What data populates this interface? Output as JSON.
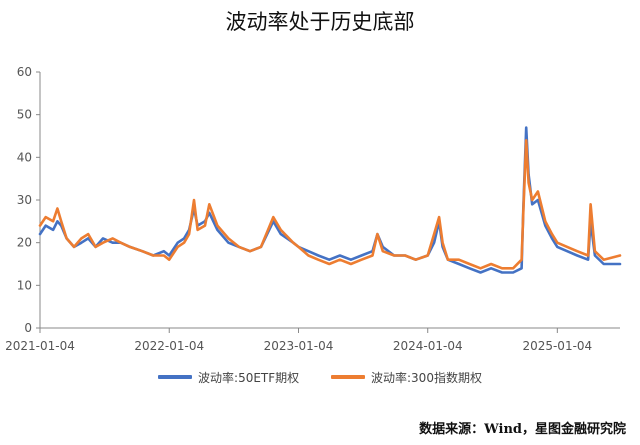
{
  "title": "波动率处于历史底部",
  "source": "数据来源：Wind，星图金融研究院",
  "colors": {
    "etf50": "#4472C4",
    "idx300": "#ED7D31",
    "axis": "#888888",
    "tick_text": "#555555"
  },
  "chart_data": {
    "type": "line",
    "title": "波动率处于历史底部",
    "xlabel": "",
    "ylabel": "",
    "ylim": [
      0,
      60
    ],
    "yticks": [
      0,
      10,
      20,
      30,
      40,
      50,
      60
    ],
    "xlim": [
      "2021-01-04",
      "2025-06-30"
    ],
    "xticks": [
      "2021-01-04",
      "2022-01-04",
      "2023-01-04",
      "2024-01-04",
      "2025-01-04"
    ],
    "grid": false,
    "legend_position": "bottom",
    "series": [
      {
        "name": "波动率:50ETF期权",
        "color": "#4472C4",
        "points": [
          [
            "2021-01-04",
            22
          ],
          [
            "2021-01-20",
            24
          ],
          [
            "2021-02-10",
            23
          ],
          [
            "2021-02-22",
            25
          ],
          [
            "2021-03-05",
            24
          ],
          [
            "2021-03-20",
            21
          ],
          [
            "2021-04-10",
            19
          ],
          [
            "2021-05-01",
            20
          ],
          [
            "2021-05-20",
            21
          ],
          [
            "2021-06-10",
            19
          ],
          [
            "2021-07-01",
            21
          ],
          [
            "2021-07-28",
            20
          ],
          [
            "2021-08-20",
            20
          ],
          [
            "2021-09-15",
            19
          ],
          [
            "2021-10-20",
            18
          ],
          [
            "2021-11-20",
            17
          ],
          [
            "2021-12-20",
            18
          ],
          [
            "2022-01-04",
            17
          ],
          [
            "2022-01-28",
            20
          ],
          [
            "2022-02-15",
            21
          ],
          [
            "2022-03-01",
            23
          ],
          [
            "2022-03-15",
            28
          ],
          [
            "2022-03-25",
            24
          ],
          [
            "2022-04-15",
            25
          ],
          [
            "2022-04-27",
            27
          ],
          [
            "2022-05-20",
            23
          ],
          [
            "2022-06-20",
            20
          ],
          [
            "2022-07-20",
            19
          ],
          [
            "2022-08-20",
            18
          ],
          [
            "2022-09-20",
            19
          ],
          [
            "2022-10-25",
            25
          ],
          [
            "2022-11-15",
            22
          ],
          [
            "2022-12-20",
            20
          ],
          [
            "2023-01-04",
            19
          ],
          [
            "2023-02-01",
            18
          ],
          [
            "2023-03-01",
            17
          ],
          [
            "2023-04-01",
            16
          ],
          [
            "2023-05-01",
            17
          ],
          [
            "2023-06-01",
            16
          ],
          [
            "2023-07-01",
            17
          ],
          [
            "2023-08-01",
            18
          ],
          [
            "2023-08-15",
            22
          ],
          [
            "2023-08-30",
            19
          ],
          [
            "2023-10-01",
            17
          ],
          [
            "2023-11-01",
            17
          ],
          [
            "2023-12-01",
            16
          ],
          [
            "2024-01-04",
            17
          ],
          [
            "2024-01-22",
            20
          ],
          [
            "2024-02-05",
            25
          ],
          [
            "2024-02-15",
            19
          ],
          [
            "2024-03-01",
            16
          ],
          [
            "2024-04-01",
            15
          ],
          [
            "2024-05-01",
            14
          ],
          [
            "2024-06-01",
            13
          ],
          [
            "2024-07-01",
            14
          ],
          [
            "2024-08-01",
            13
          ],
          [
            "2024-09-01",
            13
          ],
          [
            "2024-09-25",
            14
          ],
          [
            "2024-09-30",
            28
          ],
          [
            "2024-10-08",
            47
          ],
          [
            "2024-10-15",
            36
          ],
          [
            "2024-10-25",
            29
          ],
          [
            "2024-11-10",
            30
          ],
          [
            "2024-12-01",
            24
          ],
          [
            "2024-12-20",
            21
          ],
          [
            "2025-01-04",
            19
          ],
          [
            "2025-02-01",
            18
          ],
          [
            "2025-03-01",
            17
          ],
          [
            "2025-04-01",
            16
          ],
          [
            "2025-04-08",
            25
          ],
          [
            "2025-04-20",
            17
          ],
          [
            "2025-05-15",
            15
          ],
          [
            "2025-06-30",
            15
          ]
        ]
      },
      {
        "name": "波动率:300指数期权",
        "color": "#ED7D31",
        "points": [
          [
            "2021-01-04",
            24
          ],
          [
            "2021-01-20",
            26
          ],
          [
            "2021-02-10",
            25
          ],
          [
            "2021-02-22",
            28
          ],
          [
            "2021-03-05",
            25
          ],
          [
            "2021-03-20",
            21
          ],
          [
            "2021-04-10",
            19
          ],
          [
            "2021-05-01",
            21
          ],
          [
            "2021-05-20",
            22
          ],
          [
            "2021-06-10",
            19
          ],
          [
            "2021-07-01",
            20
          ],
          [
            "2021-07-28",
            21
          ],
          [
            "2021-08-20",
            20
          ],
          [
            "2021-09-15",
            19
          ],
          [
            "2021-10-20",
            18
          ],
          [
            "2021-11-20",
            17
          ],
          [
            "2021-12-20",
            17
          ],
          [
            "2022-01-04",
            16
          ],
          [
            "2022-01-28",
            19
          ],
          [
            "2022-02-15",
            20
          ],
          [
            "2022-03-01",
            22
          ],
          [
            "2022-03-15",
            30
          ],
          [
            "2022-03-25",
            23
          ],
          [
            "2022-04-15",
            24
          ],
          [
            "2022-04-27",
            29
          ],
          [
            "2022-05-20",
            24
          ],
          [
            "2022-06-20",
            21
          ],
          [
            "2022-07-20",
            19
          ],
          [
            "2022-08-20",
            18
          ],
          [
            "2022-09-20",
            19
          ],
          [
            "2022-10-25",
            26
          ],
          [
            "2022-11-15",
            23
          ],
          [
            "2022-12-20",
            20
          ],
          [
            "2023-01-04",
            19
          ],
          [
            "2023-02-01",
            17
          ],
          [
            "2023-03-01",
            16
          ],
          [
            "2023-04-01",
            15
          ],
          [
            "2023-05-01",
            16
          ],
          [
            "2023-06-01",
            15
          ],
          [
            "2023-07-01",
            16
          ],
          [
            "2023-08-01",
            17
          ],
          [
            "2023-08-15",
            22
          ],
          [
            "2023-08-30",
            18
          ],
          [
            "2023-10-01",
            17
          ],
          [
            "2023-11-01",
            17
          ],
          [
            "2023-12-01",
            16
          ],
          [
            "2024-01-04",
            17
          ],
          [
            "2024-01-22",
            22
          ],
          [
            "2024-02-05",
            26
          ],
          [
            "2024-02-15",
            20
          ],
          [
            "2024-03-01",
            16
          ],
          [
            "2024-04-01",
            16
          ],
          [
            "2024-05-01",
            15
          ],
          [
            "2024-06-01",
            14
          ],
          [
            "2024-07-01",
            15
          ],
          [
            "2024-08-01",
            14
          ],
          [
            "2024-09-01",
            14
          ],
          [
            "2024-09-25",
            16
          ],
          [
            "2024-09-30",
            27
          ],
          [
            "2024-10-08",
            44
          ],
          [
            "2024-10-15",
            34
          ],
          [
            "2024-10-25",
            30
          ],
          [
            "2024-11-10",
            32
          ],
          [
            "2024-12-01",
            25
          ],
          [
            "2024-12-20",
            22
          ],
          [
            "2025-01-04",
            20
          ],
          [
            "2025-02-01",
            19
          ],
          [
            "2025-03-01",
            18
          ],
          [
            "2025-04-01",
            17
          ],
          [
            "2025-04-08",
            29
          ],
          [
            "2025-04-20",
            18
          ],
          [
            "2025-05-15",
            16
          ],
          [
            "2025-06-30",
            17
          ]
        ]
      }
    ]
  }
}
